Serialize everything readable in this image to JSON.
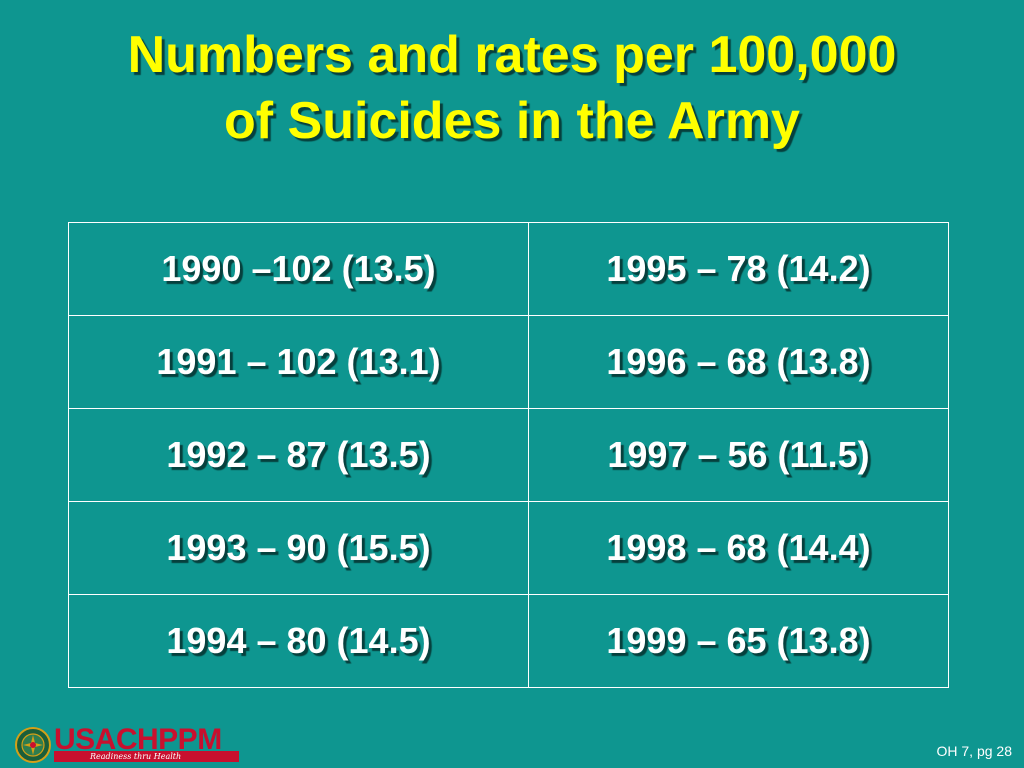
{
  "slide": {
    "title_line1": "Numbers and rates per 100,000",
    "title_line2": "of Suicides in the Army",
    "rows": [
      {
        "left": "1990 –102 (13.5)",
        "right": "1995 – 78 (14.2)"
      },
      {
        "left": "1991 – 102 (13.1)",
        "right": "1996 – 68 (13.8)"
      },
      {
        "left": "1992 – 87 (13.5)",
        "right": "1997 – 56 (11.5)"
      },
      {
        "left": "1993 – 90 (15.5)",
        "right": "1998 – 68 (14.4)"
      },
      {
        "left": "1994 – 80 (14.5)",
        "right": "1999 – 65 (13.8)"
      }
    ],
    "footer": {
      "logo_text": "USACHPPM",
      "logo_tagline": "Readiness thru Health",
      "page_ref": "OH 7, pg 28"
    }
  },
  "colors": {
    "background": "#0e9690",
    "title": "#ffff00",
    "table_text": "#ffffff",
    "logo": "#c8102e"
  }
}
